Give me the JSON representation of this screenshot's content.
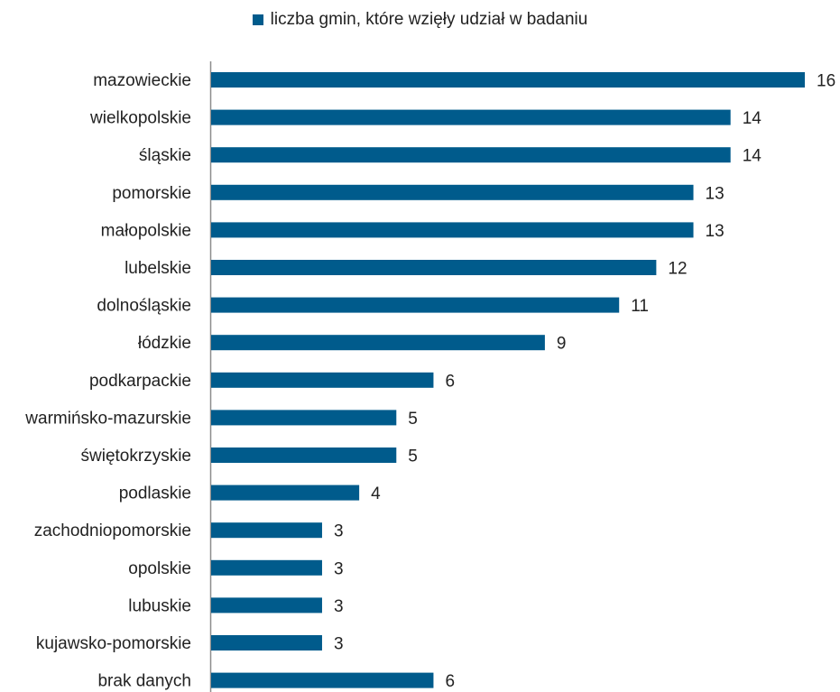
{
  "chart_data": {
    "type": "bar",
    "orientation": "horizontal",
    "categories": [
      "mazowieckie",
      "wielkopolskie",
      "śląskie",
      "pomorskie",
      "małopolskie",
      "lubelskie",
      "dolnośląskie",
      "łódzkie",
      "podkarpackie",
      "warmińsko-mazurskie",
      "świętokrzyskie",
      "podlaskie",
      "zachodniopomorskie",
      "opolskie",
      "lubuskie",
      "kujawsko-pomorskie",
      "brak danych"
    ],
    "series": [
      {
        "name": "liczba gmin, które wzięły udział w badaniu",
        "color": "#005b8c",
        "values": [
          16,
          14,
          14,
          13,
          13,
          12,
          11,
          9,
          6,
          5,
          5,
          4,
          3,
          3,
          3,
          3,
          6
        ]
      }
    ],
    "xlim": [
      0,
      16
    ],
    "grid": false,
    "legend_position": "top-center",
    "data_labels": true
  },
  "colors": {
    "bar": "#005b8c",
    "axis": "#8c8c8c",
    "text": "#222222"
  }
}
